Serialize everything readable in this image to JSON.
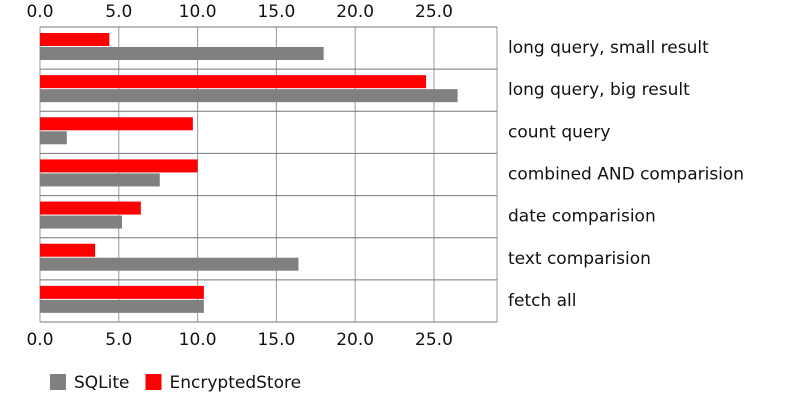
{
  "chart_data": {
    "type": "hbar",
    "categories": [
      "long query, small result",
      "long query, big result",
      "count query",
      "combined AND comparision",
      "date comparision",
      "text comparision",
      "fetch all"
    ],
    "series": [
      {
        "name": "SQLite",
        "color": "#808080",
        "values": [
          18.0,
          26.5,
          1.7,
          7.6,
          5.2,
          16.4,
          10.4
        ]
      },
      {
        "name": "EncryptedStore",
        "color": "#ff0000",
        "values": [
          4.4,
          24.5,
          9.7,
          10.0,
          6.4,
          3.5,
          10.4
        ]
      }
    ],
    "xlim": [
      0,
      29
    ],
    "xticks": [
      {
        "value": 0,
        "label": "0.0"
      },
      {
        "value": 5,
        "label": "5.0"
      },
      {
        "value": 10,
        "label": "10.0"
      },
      {
        "value": 15,
        "label": "15.0"
      },
      {
        "value": 20,
        "label": "20.0"
      },
      {
        "value": 25,
        "label": "25.0"
      }
    ],
    "grid": true
  }
}
